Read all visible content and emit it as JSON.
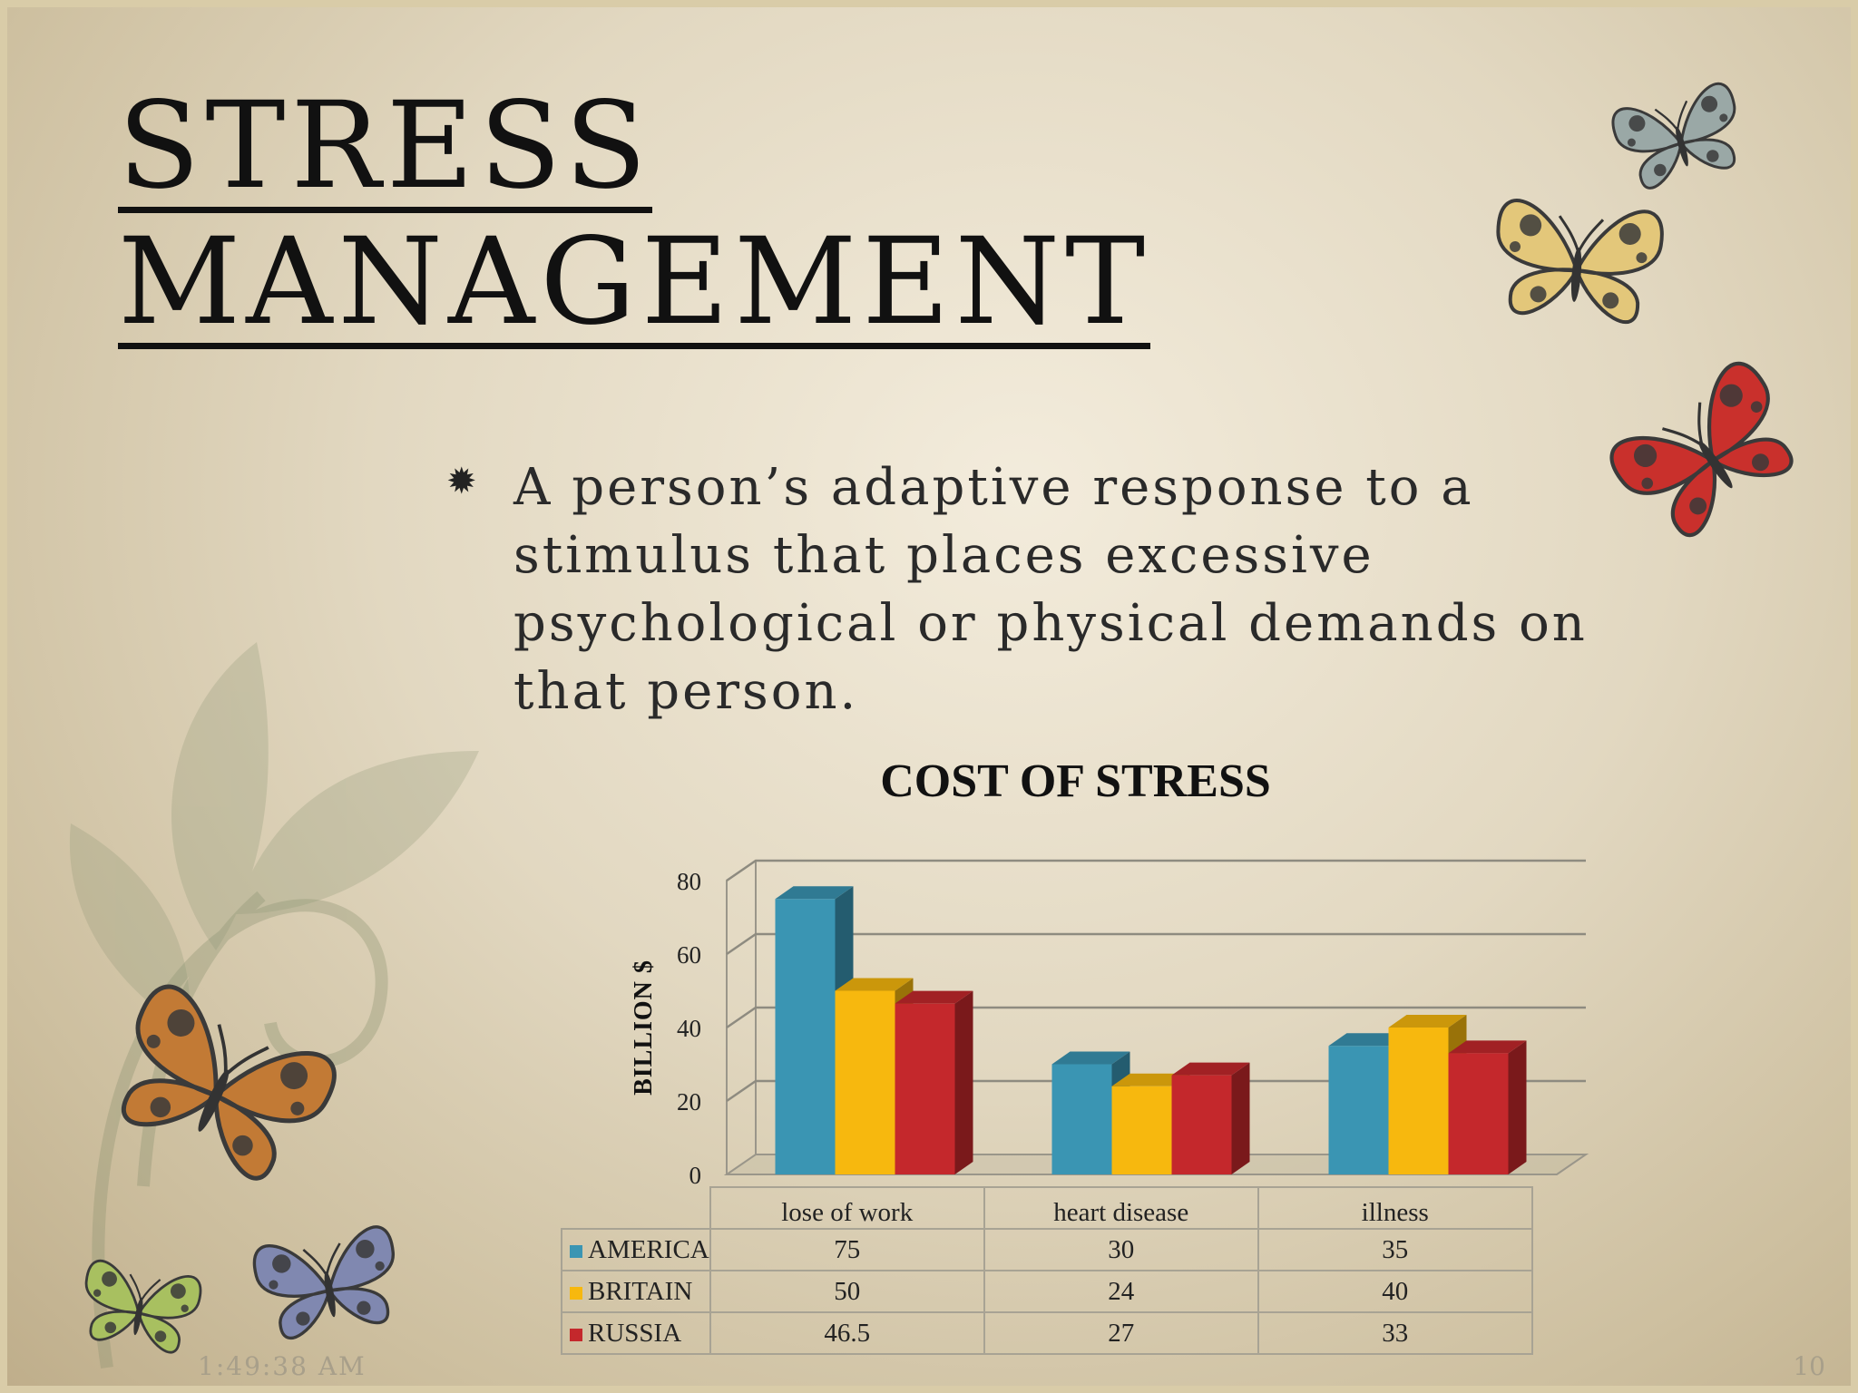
{
  "slide": {
    "title_line1": "STRESS",
    "title_line2": "MANAGEMENT",
    "bullet_text": "A person’s adaptive response to a stimulus that places excessive psychological or physical demands on that person.",
    "time": "1:49:38 AM",
    "page_number": "10"
  },
  "decor": {
    "icons": [
      "flourish-vine-icon",
      "butterfly-icon"
    ],
    "butterfly_colors": [
      "#9aa8a6",
      "#e3c77a",
      "#c9302c",
      "#c27a35",
      "#8088b0",
      "#a8c060"
    ]
  },
  "colors": {
    "america": "#3a95b3",
    "britain": "#f7b80e",
    "russia": "#c4282c"
  },
  "chart_data": {
    "type": "bar",
    "title": "COST OF STRESS",
    "ylabel": "BILLION $",
    "xlabel": "",
    "ylim": [
      0,
      80
    ],
    "yticks": [
      "0",
      "20",
      "40",
      "60",
      "80"
    ],
    "categories": [
      "lose of work",
      "heart disease",
      "illness"
    ],
    "series": [
      {
        "name": "AMERICA",
        "values": [
          75,
          30,
          35
        ]
      },
      {
        "name": "BRITAIN",
        "values": [
          50,
          24,
          40
        ]
      },
      {
        "name": "RUSSIA",
        "values": [
          46.5,
          27,
          33
        ]
      }
    ],
    "table_values": [
      [
        "75",
        "30",
        "35"
      ],
      [
        "50",
        "24",
        "40"
      ],
      [
        "46.5",
        "27",
        "33"
      ]
    ],
    "grid": true,
    "legend": "data table"
  }
}
